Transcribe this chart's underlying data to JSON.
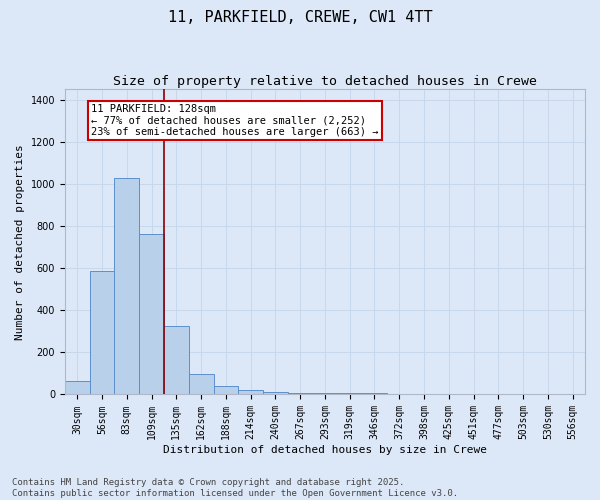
{
  "title": "11, PARKFIELD, CREWE, CW1 4TT",
  "subtitle": "Size of property relative to detached houses in Crewe",
  "xlabel": "Distribution of detached houses by size in Crewe",
  "ylabel": "Number of detached properties",
  "bin_labels": [
    "30sqm",
    "56sqm",
    "83sqm",
    "109sqm",
    "135sqm",
    "162sqm",
    "188sqm",
    "214sqm",
    "240sqm",
    "267sqm",
    "293sqm",
    "319sqm",
    "346sqm",
    "372sqm",
    "398sqm",
    "425sqm",
    "451sqm",
    "477sqm",
    "503sqm",
    "530sqm",
    "556sqm"
  ],
  "bar_values": [
    65,
    585,
    1030,
    760,
    325,
    95,
    40,
    20,
    10,
    5,
    5,
    5,
    5,
    0,
    0,
    0,
    0,
    0,
    0,
    0,
    0
  ],
  "bar_color": "#b8d0ea",
  "bar_edge_color": "#5b8fcc",
  "grid_color": "#c8d8ec",
  "background_color": "#dce8f8",
  "ylim": [
    0,
    1450
  ],
  "yticks": [
    0,
    200,
    400,
    600,
    800,
    1000,
    1200,
    1400
  ],
  "vline_pos": 3.5,
  "vline_color": "#8b0000",
  "annotation_line1": "11 PARKFIELD: 128sqm",
  "annotation_line2": "← 77% of detached houses are smaller (2,252)",
  "annotation_line3": "23% of semi-detached houses are larger (663) →",
  "footer_text": "Contains HM Land Registry data © Crown copyright and database right 2025.\nContains public sector information licensed under the Open Government Licence v3.0.",
  "title_fontsize": 11,
  "subtitle_fontsize": 9.5,
  "axis_label_fontsize": 8,
  "tick_fontsize": 7,
  "annotation_fontsize": 7.5,
  "footer_fontsize": 6.5
}
